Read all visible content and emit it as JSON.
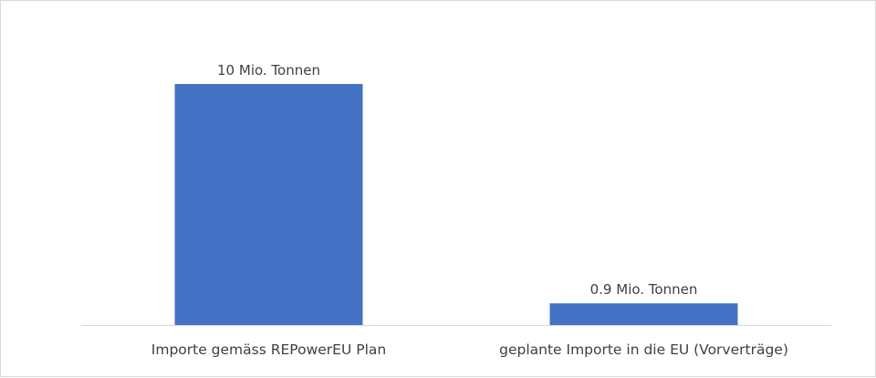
{
  "chart_data": {
    "type": "bar",
    "title": "",
    "xlabel": "",
    "ylabel": "",
    "categories": [
      "Importe gemäss REPowerEU Plan",
      "geplante Importe in die EU (Vorverträge)"
    ],
    "values": [
      10,
      0.9
    ],
    "data_labels": [
      "10 Mio. Tonnen",
      "0.9 Mio. Tonnen"
    ],
    "ylim": [
      0,
      10
    ],
    "grid": false,
    "legend": "none",
    "bar_color": "#4472C4",
    "axis_color": "#d9d9d9",
    "text_color": "#404040"
  }
}
